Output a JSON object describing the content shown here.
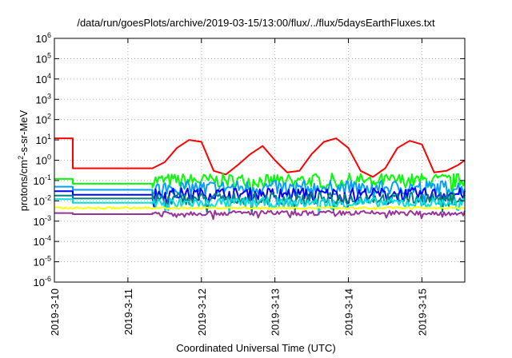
{
  "chart_data": {
    "type": "line",
    "title": "/data/run/goesPlots/archive/2019-03-15/13:00/flux/../flux/5daysEarthFluxes.txt",
    "xlabel": "Coordinated Universal Time (UTC)",
    "ylabel_parts": [
      "protons/cm",
      "2",
      "-s-sr-MeV"
    ],
    "y_scale": "log",
    "ylim": [
      1e-06,
      1000000.0
    ],
    "y_tick_mantissa": "10",
    "y_tick_exponents": [
      "-6",
      "-5",
      "-4",
      "-3",
      "-2",
      "-1",
      "0",
      "1",
      "2",
      "3",
      "4",
      "5",
      "6"
    ],
    "xlim": [
      "2019-03-10 00:00",
      "2019-03-15 14:00"
    ],
    "x_ticks": [
      "2019-3-10",
      "2019-3-11",
      "2019-3-12",
      "2019-3-13",
      "2019-3-14",
      "2019-3-15"
    ],
    "grid": true,
    "legend": "none",
    "series": [
      {
        "color": "#ff0000",
        "segments": [
          {
            "x": [
              "2019-03-10 00:00",
              "2019-03-10 06:00"
            ],
            "y": [
              12,
              12
            ]
          },
          {
            "x": [
              "2019-03-10 06:00",
              "2019-03-11 08:00"
            ],
            "y": [
              0.4,
              0.4
            ]
          },
          {
            "x": [
              "2019-03-11 08:00",
              "2019-03-11 12:00",
              "2019-03-11 16:00",
              "2019-03-11 20:00",
              "2019-03-12 00:00",
              "2019-03-12 04:00",
              "2019-03-12 08:00",
              "2019-03-12 12:00",
              "2019-03-12 16:00",
              "2019-03-12 20:00",
              "2019-03-13 00:00",
              "2019-03-13 04:00",
              "2019-03-13 08:00",
              "2019-03-13 12:00",
              "2019-03-13 16:00",
              "2019-03-13 20:00",
              "2019-03-14 00:00",
              "2019-03-14 04:00",
              "2019-03-14 08:00",
              "2019-03-14 12:00",
              "2019-03-14 16:00",
              "2019-03-14 20:00",
              "2019-03-15 00:00",
              "2019-03-15 04:00",
              "2019-03-15 08:00",
              "2019-03-15 12:00",
              "2019-03-15 14:00"
            ],
            "y": [
              0.4,
              0.8,
              4,
              10,
              8,
              0.3,
              0.2,
              0.6,
              2,
              5,
              1,
              0.25,
              0.3,
              2,
              8,
              12,
              4,
              0.3,
              0.15,
              0.4,
              4,
              9,
              6,
              0.25,
              0.3,
              0.6,
              1
            ]
          }
        ]
      },
      {
        "color": "#00ff00",
        "segments": [
          {
            "x": [
              "2019-03-10 00:00",
              "2019-03-10 06:00"
            ],
            "y": [
              0.12,
              0.12
            ]
          },
          {
            "x": [
              "2019-03-10 06:00",
              "2019-03-11 08:00"
            ],
            "y": [
              0.07,
              0.07
            ]
          },
          {
            "x": [
              "2019-03-11 08:00",
              "2019-03-15 14:00"
            ],
            "y": [
              0.1,
              0.1
            ],
            "noise": 0.35
          }
        ]
      },
      {
        "color": "#00a0ff",
        "segments": [
          {
            "x": [
              "2019-03-10 00:00",
              "2019-03-10 06:00"
            ],
            "y": [
              0.05,
              0.05
            ]
          },
          {
            "x": [
              "2019-03-10 06:00",
              "2019-03-11 08:00"
            ],
            "y": [
              0.035,
              0.035
            ]
          },
          {
            "x": [
              "2019-03-11 08:00",
              "2019-03-15 14:00"
            ],
            "y": [
              0.045,
              0.045
            ],
            "noise": 0.35
          }
        ]
      },
      {
        "color": "#0000ff",
        "segments": [
          {
            "x": [
              "2019-03-10 00:00",
              "2019-03-10 06:00"
            ],
            "y": [
              0.03,
              0.03
            ]
          },
          {
            "x": [
              "2019-03-10 06:00",
              "2019-03-11 08:00"
            ],
            "y": [
              0.02,
              0.02
            ]
          },
          {
            "x": [
              "2019-03-11 08:00",
              "2019-03-15 14:00"
            ],
            "y": [
              0.022,
              0.022
            ],
            "noise": 0.3
          }
        ]
      },
      {
        "color": "#008080",
        "segments": [
          {
            "x": [
              "2019-03-10 00:00",
              "2019-03-10 06:00"
            ],
            "y": [
              0.018,
              0.018
            ]
          },
          {
            "x": [
              "2019-03-10 06:00",
              "2019-03-11 08:00"
            ],
            "y": [
              0.013,
              0.013
            ]
          },
          {
            "x": [
              "2019-03-11 08:00",
              "2019-03-15 14:00"
            ],
            "y": [
              0.013,
              0.013
            ],
            "noise": 0.3
          }
        ]
      },
      {
        "color": "#00e0e0",
        "segments": [
          {
            "x": [
              "2019-03-10 00:00",
              "2019-03-10 06:00"
            ],
            "y": [
              0.012,
              0.012
            ]
          },
          {
            "x": [
              "2019-03-10 06:00",
              "2019-03-11 08:00"
            ],
            "y": [
              0.008,
              0.008
            ]
          },
          {
            "x": [
              "2019-03-11 08:00",
              "2019-03-15 14:00"
            ],
            "y": [
              0.008,
              0.008
            ],
            "noise": 0.25
          }
        ]
      },
      {
        "color": "#ffff00",
        "segments": [
          {
            "x": [
              "2019-03-10 00:00",
              "2019-03-15 14:00"
            ],
            "y": [
              0.0045,
              0.0045
            ],
            "noise": 0.04
          }
        ]
      },
      {
        "color": "#993399",
        "segments": [
          {
            "x": [
              "2019-03-10 00:00",
              "2019-03-10 06:00"
            ],
            "y": [
              0.0025,
              0.0025
            ]
          },
          {
            "x": [
              "2019-03-10 06:00",
              "2019-03-11 08:00"
            ],
            "y": [
              0.0022,
              0.0022
            ]
          },
          {
            "x": [
              "2019-03-11 08:00",
              "2019-03-15 14:00"
            ],
            "y": [
              0.0025,
              0.0025
            ],
            "noise": 0.12
          }
        ]
      }
    ]
  }
}
